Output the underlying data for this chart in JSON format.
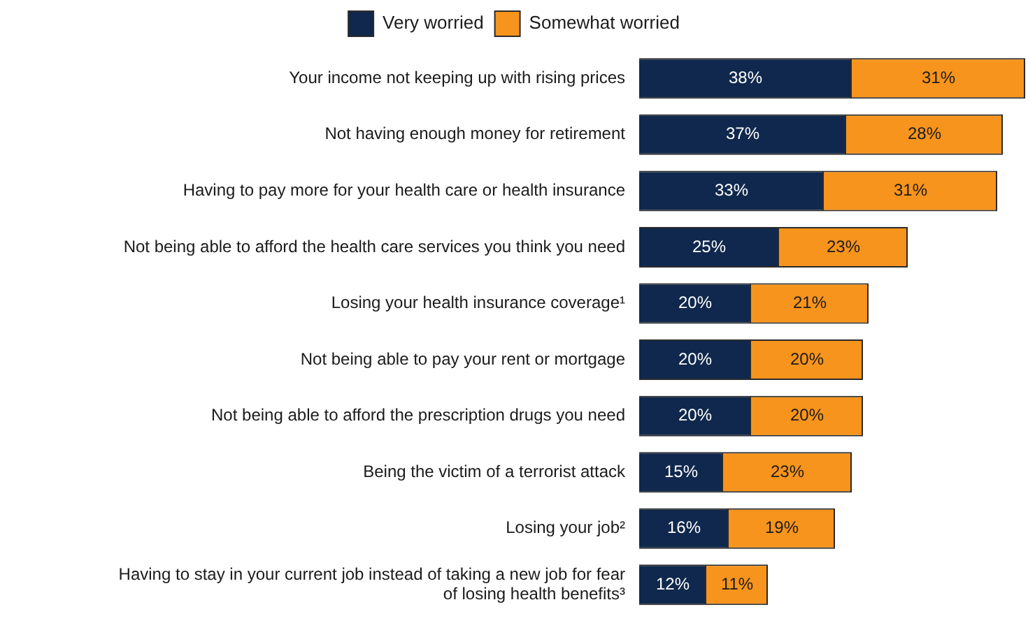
{
  "chart_data": {
    "type": "bar",
    "orientation": "horizontal",
    "stacked": true,
    "legend": "top",
    "tick_labels": "y",
    "categories": [
      "Your income not keeping up with rising prices",
      "Not having enough money for retirement",
      "Having to pay more for your health care or health insurance",
      "Not being able to afford the health care services you think you need",
      "Losing your health insurance coverage¹",
      "Not being able to pay your rent or mortgage",
      "Not being able to afford the prescription drugs you need",
      "Being the victim of a terrorist attack",
      "Losing your job²",
      "Having to stay in your current job instead of taking a new job for fear of losing health benefits³"
    ],
    "series": [
      {
        "name": "Very worried",
        "color": "#10284d",
        "values": [
          38,
          37,
          33,
          25,
          20,
          20,
          20,
          15,
          16,
          12
        ],
        "value_labels": [
          "38%",
          "37%",
          "33%",
          "25%",
          "20%",
          "20%",
          "20%",
          "15%",
          "16%",
          "12%"
        ]
      },
      {
        "name": "Somewhat worried",
        "color": "#f7941d",
        "values": [
          31,
          28,
          31,
          23,
          21,
          20,
          20,
          23,
          19,
          11
        ],
        "value_labels": [
          "31%",
          "28%",
          "31%",
          "23%",
          "21%",
          "20%",
          "20%",
          "23%",
          "19%",
          "11%"
        ]
      }
    ]
  }
}
